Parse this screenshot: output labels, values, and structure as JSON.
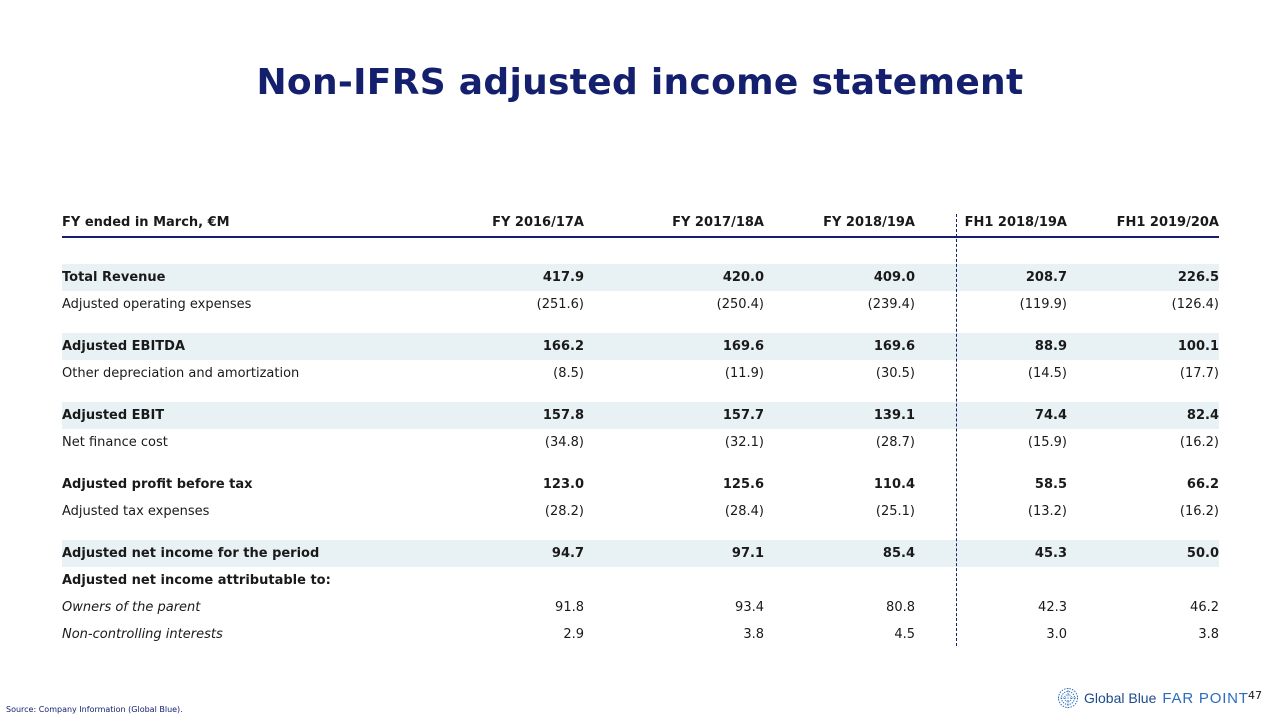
{
  "title": "Non-IFRS adjusted income statement",
  "table": {
    "header": {
      "label": "FY ended in March, €M",
      "columns": [
        "FY 2016/17A",
        "FY 2017/18A",
        "FY 2018/19A",
        "FH1 2018/19A",
        "FH1 2019/20A"
      ]
    },
    "rows": [
      {
        "label": "Total Revenue",
        "values": [
          "417.9",
          "420.0",
          "409.0",
          "208.7",
          "226.5"
        ]
      },
      {
        "label": "Adjusted operating expenses",
        "values": [
          "(251.6)",
          "(250.4)",
          "(239.4)",
          "(119.9)",
          "(126.4)"
        ]
      },
      {
        "label": "Adjusted EBITDA",
        "values": [
          "166.2",
          "169.6",
          "169.6",
          "88.9",
          "100.1"
        ]
      },
      {
        "label": "Other depreciation and amortization",
        "values": [
          "(8.5)",
          "(11.9)",
          "(30.5)",
          "(14.5)",
          "(17.7)"
        ]
      },
      {
        "label": "Adjusted EBIT",
        "values": [
          "157.8",
          "157.7",
          "139.1",
          "74.4",
          "82.4"
        ]
      },
      {
        "label": "Net finance cost",
        "values": [
          "(34.8)",
          "(32.1)",
          "(28.7)",
          "(15.9)",
          "(16.2)"
        ]
      },
      {
        "label": "Adjusted profit before tax",
        "values": [
          "123.0",
          "125.6",
          "110.4",
          "58.5",
          "66.2"
        ]
      },
      {
        "label": "Adjusted tax expenses",
        "values": [
          "(28.2)",
          "(28.4)",
          "(25.1)",
          "(13.2)",
          "(16.2)"
        ]
      },
      {
        "label": "Adjusted net income for the period",
        "values": [
          "94.7",
          "97.1",
          "85.4",
          "45.3",
          "50.0"
        ]
      },
      {
        "label": "Adjusted net income attributable to:",
        "values": [
          "",
          "",
          "",
          "",
          ""
        ]
      },
      {
        "label": "Owners of the parent",
        "values": [
          "91.8",
          "93.4",
          "80.8",
          "42.3",
          "46.2"
        ]
      },
      {
        "label": "Non-controlling interests",
        "values": [
          "2.9",
          "3.8",
          "4.5",
          "3.0",
          "3.8"
        ]
      }
    ]
  },
  "footer": {
    "source": "Source: Company Information (Global Blue).",
    "logo_text_1": "Global Blue",
    "logo_text_2": "FAR POINT",
    "page_number": "47"
  },
  "colors": {
    "title": "#14206e",
    "shading": "#e8f1f3",
    "logo_blue": "#2a6cc0"
  }
}
